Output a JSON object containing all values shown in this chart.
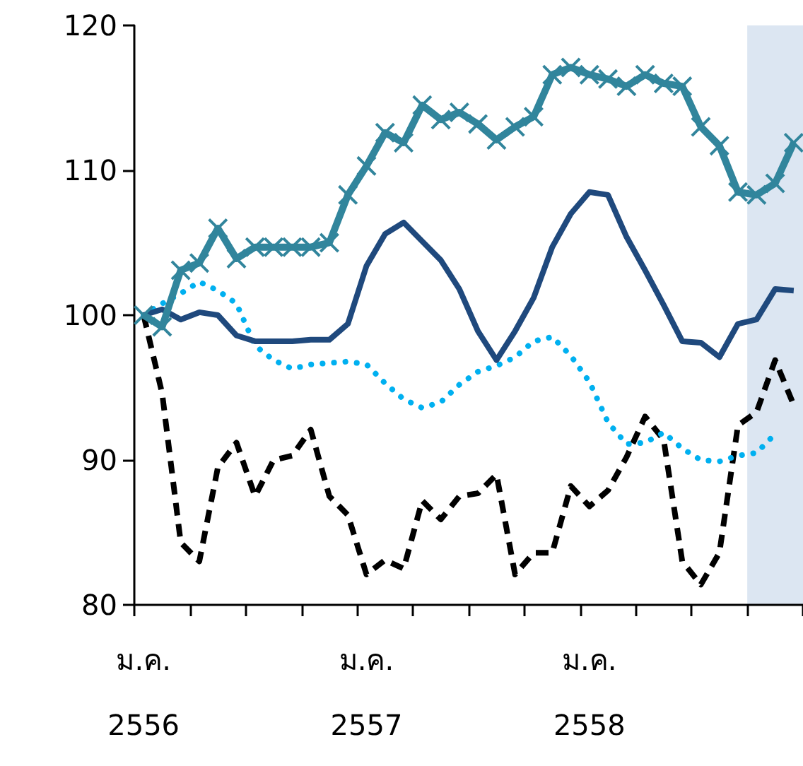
{
  "chart_data": {
    "type": "line",
    "categories": [
      "ม.ค.\n2556",
      null,
      null,
      null,
      null,
      null,
      null,
      null,
      null,
      null,
      null,
      null,
      "ม.ค.\n2557",
      null,
      null,
      null,
      null,
      null,
      null,
      null,
      null,
      null,
      null,
      null,
      "ม.ค.\n2558",
      null,
      null,
      null,
      null,
      null,
      null,
      null,
      null,
      null,
      null,
      null
    ],
    "ylim": [
      80,
      120
    ],
    "yticks": [
      80,
      90,
      100,
      110,
      120
    ],
    "series": [
      {
        "color": "#31859c",
        "marker": "cross",
        "line_style": "solid",
        "values": [
          100.0,
          99.2,
          103.1,
          103.6,
          106.0,
          103.9,
          104.7,
          104.7,
          104.7,
          104.7,
          105.0,
          108.3,
          110.3,
          112.6,
          111.9,
          114.5,
          113.5,
          114.0,
          113.2,
          112.1,
          113.0,
          113.7,
          116.6,
          117.1,
          116.6,
          116.3,
          115.8,
          116.6,
          116.0,
          115.8,
          113.0,
          111.7,
          108.5,
          108.3,
          109.1,
          111.9
        ]
      },
      {
        "color": "#1f497d",
        "marker": "none",
        "line_style": "solid",
        "values": [
          100.0,
          100.4,
          99.7,
          100.2,
          100.0,
          98.6,
          98.2,
          98.2,
          98.2,
          98.3,
          98.3,
          99.4,
          103.4,
          105.6,
          106.4,
          105.1,
          103.8,
          101.8,
          98.9,
          96.9,
          98.9,
          101.2,
          104.7,
          107.0,
          108.5,
          108.3,
          105.4,
          103.1,
          100.7,
          98.2,
          98.1,
          97.1,
          99.4,
          99.7,
          101.8,
          101.7
        ]
      },
      {
        "color": "#00b0f0",
        "marker": "none",
        "line_style": "dotted",
        "values": [
          100.0,
          100.8,
          101.5,
          102.3,
          101.7,
          100.8,
          97.9,
          96.9,
          96.3,
          96.6,
          96.7,
          96.8,
          96.6,
          95.3,
          94.2,
          93.6,
          94.0,
          95.2,
          96.1,
          96.5,
          97.1,
          98.2,
          98.5,
          97.2,
          95.4,
          92.6,
          91.1,
          91.2,
          91.9,
          90.8,
          90.0,
          89.9,
          90.3,
          90.5,
          91.8,
          null
        ]
      },
      {
        "color": "#000000",
        "marker": "none",
        "line_style": "dashed",
        "values": [
          100.0,
          94.6,
          84.3,
          83.0,
          89.5,
          91.2,
          87.5,
          90.0,
          90.3,
          92.1,
          87.5,
          86.2,
          82.1,
          83.1,
          82.5,
          87.2,
          85.9,
          87.5,
          87.7,
          89.0,
          82.1,
          83.6,
          83.6,
          88.2,
          86.8,
          87.9,
          90.2,
          93.0,
          91.4,
          83.0,
          81.4,
          83.6,
          92.4,
          93.3,
          96.9,
          93.8
        ]
      }
    ]
  }
}
